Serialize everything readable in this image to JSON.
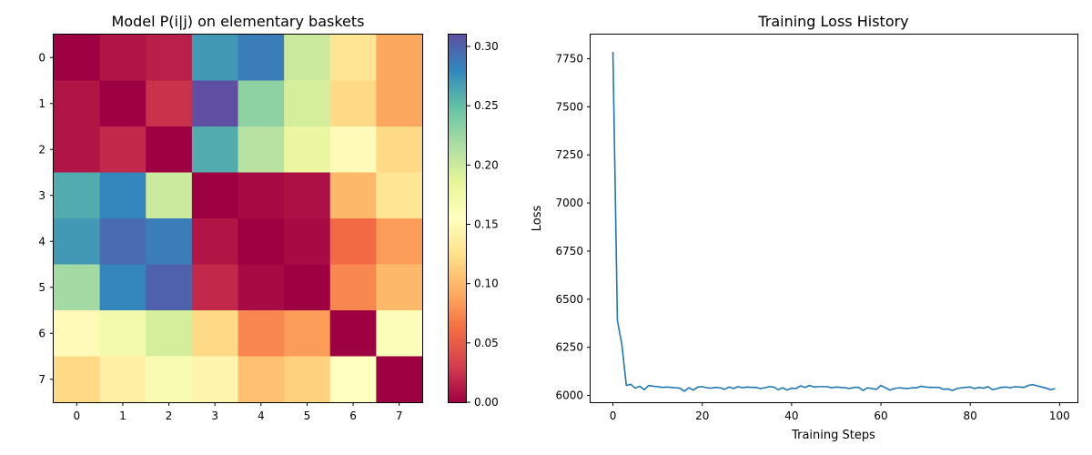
{
  "chart_data": [
    {
      "type": "heatmap",
      "title": "Model P(i|j) on elementary baskets",
      "xlabel": "",
      "ylabel": "",
      "x_ticks": [
        "0",
        "1",
        "2",
        "3",
        "4",
        "5",
        "6",
        "7"
      ],
      "y_ticks": [
        "0",
        "1",
        "2",
        "3",
        "4",
        "5",
        "6",
        "7"
      ],
      "colormap": "Spectral",
      "vmin": 0.0,
      "vmax": 0.31,
      "colorbar_ticks": [
        "0.00",
        "0.05",
        "0.10",
        "0.15",
        "0.20",
        "0.25",
        "0.30"
      ],
      "colorbar_tick_values": [
        0.0,
        0.05,
        0.1,
        0.15,
        0.2,
        0.25,
        0.3
      ],
      "matrix": [
        [
          0.0,
          0.01,
          0.015,
          0.27,
          0.285,
          0.2,
          0.13,
          0.09
        ],
        [
          0.01,
          0.0,
          0.025,
          0.31,
          0.23,
          0.195,
          0.12,
          0.09
        ],
        [
          0.01,
          0.02,
          0.0,
          0.26,
          0.21,
          0.18,
          0.15,
          0.12
        ],
        [
          0.26,
          0.28,
          0.2,
          0.0,
          0.005,
          0.008,
          0.1,
          0.13
        ],
        [
          0.27,
          0.295,
          0.285,
          0.01,
          0.0,
          0.005,
          0.06,
          0.085
        ],
        [
          0.22,
          0.28,
          0.3,
          0.02,
          0.005,
          0.0,
          0.075,
          0.1
        ],
        [
          0.15,
          0.17,
          0.195,
          0.12,
          0.075,
          0.085,
          0.0,
          0.16
        ],
        [
          0.12,
          0.14,
          0.165,
          0.145,
          0.105,
          0.115,
          0.155,
          0.0
        ]
      ]
    },
    {
      "type": "line",
      "title": "Training Loss History",
      "xlabel": "Training Steps",
      "ylabel": "Loss",
      "xlim": [
        -5,
        104
      ],
      "ylim": [
        5965,
        7875
      ],
      "x_ticks": [
        0,
        20,
        40,
        60,
        80,
        100
      ],
      "y_ticks": [
        6000,
        6250,
        6500,
        6750,
        7000,
        7250,
        7500,
        7750
      ],
      "grid": false,
      "line_color": "#1f77b4",
      "series": [
        {
          "x": [
            0,
            1,
            2,
            3,
            4,
            5,
            6,
            7,
            8,
            9,
            10,
            11,
            12,
            13,
            14,
            15,
            16,
            17,
            18,
            19,
            20,
            21,
            22,
            23,
            24,
            25,
            26,
            27,
            28,
            29,
            30,
            31,
            32,
            33,
            34,
            35,
            36,
            37,
            38,
            39,
            40,
            41,
            42,
            43,
            44,
            45,
            46,
            47,
            48,
            49,
            50,
            51,
            52,
            53,
            54,
            55,
            56,
            57,
            58,
            59,
            60,
            61,
            62,
            63,
            64,
            65,
            66,
            67,
            68,
            69,
            70,
            71,
            72,
            73,
            74,
            75,
            76,
            77,
            78,
            79,
            80,
            81,
            82,
            83,
            84,
            85,
            86,
            87,
            88,
            89,
            90,
            91,
            92,
            93,
            94,
            95,
            96,
            97,
            98,
            99
          ],
          "y": [
            7785,
            6390,
            6265,
            6052,
            6058,
            6038,
            6048,
            6030,
            6052,
            6048,
            6046,
            6042,
            6044,
            6042,
            6040,
            6038,
            6022,
            6040,
            6028,
            6044,
            6046,
            6040,
            6038,
            6042,
            6040,
            6032,
            6044,
            6036,
            6046,
            6040,
            6044,
            6042,
            6042,
            6036,
            6040,
            6046,
            6044,
            6030,
            6040,
            6028,
            6038,
            6036,
            6050,
            6042,
            6052,
            6044,
            6046,
            6046,
            6046,
            6040,
            6044,
            6042,
            6040,
            6036,
            6042,
            6042,
            6026,
            6040,
            6036,
            6032,
            6052,
            6040,
            6028,
            6036,
            6040,
            6038,
            6036,
            6040,
            6040,
            6048,
            6044,
            6042,
            6042,
            6042,
            6032,
            6034,
            6026,
            6036,
            6040,
            6042,
            6044,
            6036,
            6042,
            6038,
            6046,
            6030,
            6036,
            6042,
            6044,
            6040,
            6046,
            6044,
            6042,
            6052,
            6056,
            6050,
            6044,
            6038,
            6030,
            6036
          ]
        }
      ]
    }
  ]
}
